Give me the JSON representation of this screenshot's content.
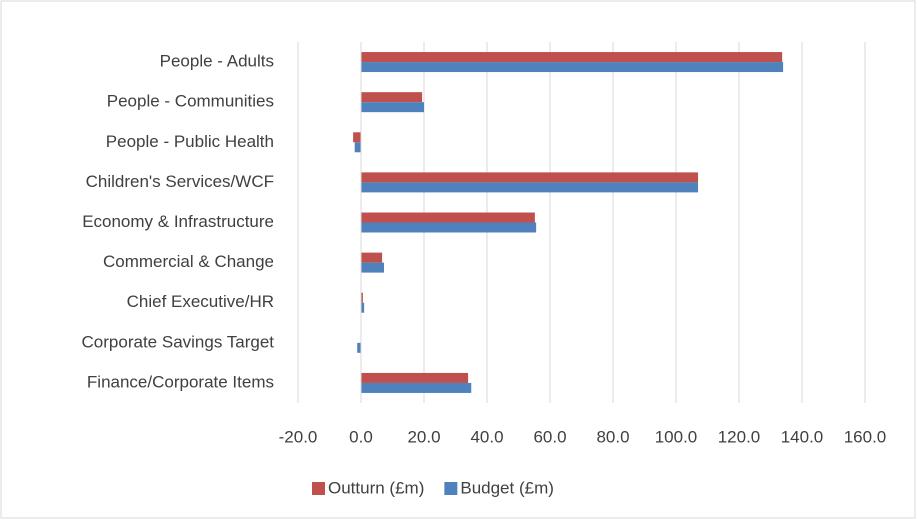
{
  "chart_data": {
    "type": "hbar",
    "categories": [
      "People - Adults",
      "People - Communities",
      "People - Public Health",
      "Children's Services/WCF",
      "Economy & Infrastructure",
      "Commercial & Change",
      "Chief Executive/HR",
      "Corporate Savings Target",
      "Finance/Corporate Items"
    ],
    "series": [
      {
        "name": "Outturn (£m)",
        "color": "#c0504d",
        "values": [
          133.7,
          19.4,
          -2.5,
          107.0,
          55.2,
          6.7,
          0.6,
          0,
          34.0
        ]
      },
      {
        "name": "Budget (£m)",
        "color": "#4f81bd",
        "values": [
          134.0,
          20.0,
          -2.0,
          107.0,
          55.6,
          7.3,
          1.0,
          -1.2,
          35.0
        ]
      }
    ],
    "xlim": [
      -20,
      160
    ],
    "xticks": [
      {
        "value": -20,
        "label": "-20.0"
      },
      {
        "value": 0,
        "label": "0.0"
      },
      {
        "value": 20,
        "label": "20.0"
      },
      {
        "value": 40,
        "label": "40.0"
      },
      {
        "value": 60,
        "label": "60.0"
      },
      {
        "value": 80,
        "label": "80.0"
      },
      {
        "value": 100,
        "label": "100.0"
      },
      {
        "value": 120,
        "label": "120.0"
      },
      {
        "value": 140,
        "label": "140.0"
      },
      {
        "value": 160,
        "label": "160.0"
      }
    ],
    "grid": true,
    "legend": "bottom"
  }
}
